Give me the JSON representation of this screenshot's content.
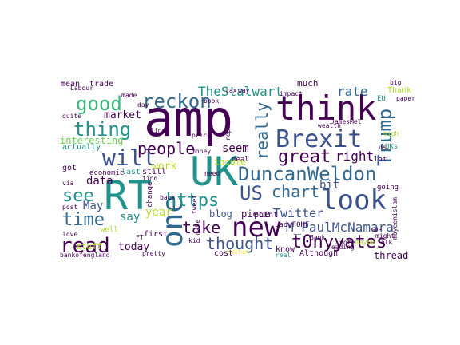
{
  "colors": {
    "dark_purple": "#440154",
    "indigo": "#3b528b",
    "slate_blue": "#31688e",
    "teal": "#21918c",
    "green": "#35b779",
    "light_green": "#6ece58",
    "yellow_green": "#b5de2b",
    "yellow": "#fde725"
  },
  "words": [
    {
      "text": "amp",
      "color": "dark_purple"
    },
    {
      "text": "think",
      "color": "dark_purple"
    },
    {
      "text": "UK",
      "color": "teal"
    },
    {
      "text": "RT",
      "color": "teal"
    },
    {
      "text": "Brexit",
      "color": "indigo"
    },
    {
      "text": "look",
      "color": "indigo"
    },
    {
      "text": "new",
      "color": "dark_purple"
    },
    {
      "text": "one",
      "color": "slate_blue"
    },
    {
      "text": "DuncanWeldon",
      "color": "slate_blue"
    },
    {
      "text": "good",
      "color": "green"
    },
    {
      "text": "will",
      "color": "indigo"
    },
    {
      "text": "read",
      "color": "dark_purple"
    },
    {
      "text": "Trump",
      "color": "slate_blue"
    },
    {
      "text": "thing",
      "color": "teal"
    },
    {
      "text": "reckon",
      "color": "slate_blue"
    },
    {
      "text": "people",
      "color": "dark_purple"
    },
    {
      "text": "great",
      "color": "dark_purple"
    },
    {
      "text": "really",
      "color": "slate_blue"
    },
    {
      "text": "see",
      "color": "teal"
    },
    {
      "text": "time",
      "color": "slate_blue"
    },
    {
      "text": "https",
      "color": "teal"
    },
    {
      "text": "US",
      "color": "indigo"
    },
    {
      "text": "chart",
      "color": "slate_blue"
    },
    {
      "text": "take",
      "color": "dark_purple"
    },
    {
      "text": "thought",
      "color": "indigo"
    },
    {
      "text": "t0nyyates",
      "color": "dark_purple"
    },
    {
      "text": "M_PaulMcNamara",
      "color": "indigo"
    },
    {
      "text": "TheStalwart",
      "color": "teal"
    },
    {
      "text": "rate",
      "color": "slate_blue"
    },
    {
      "text": "right",
      "color": "dark_purple"
    },
    {
      "text": "market",
      "color": "dark_purple"
    },
    {
      "text": "work",
      "color": "yellow_green"
    },
    {
      "text": "seem",
      "color": "dark_purple"
    },
    {
      "text": "Twitter",
      "color": "indigo"
    },
    {
      "text": "bit",
      "color": "indigo"
    },
    {
      "text": "data",
      "color": "dark_purple"
    },
    {
      "text": "year",
      "color": "yellow_green"
    },
    {
      "text": "May",
      "color": "indigo"
    },
    {
      "text": "say",
      "color": "teal"
    },
    {
      "text": "today",
      "color": "dark_purple"
    },
    {
      "text": "blog",
      "color": "indigo"
    },
    {
      "text": "piece",
      "color": "dark_purple"
    },
    {
      "text": "thread",
      "color": "dark_purple"
    },
    {
      "text": "know",
      "color": "dark_purple"
    },
    {
      "text": "income",
      "color": "yellow_green"
    },
    {
      "text": "interesting",
      "color": "light_green"
    },
    {
      "text": "stuff",
      "color": "yellow_green"
    },
    {
      "text": "Thank",
      "color": "yellow_green"
    },
    {
      "text": "trade",
      "color": "dark_purple"
    },
    {
      "text": "mean",
      "color": "dark_purple"
    },
    {
      "text": "much",
      "color": "dark_purple"
    },
    {
      "text": "quite",
      "color": "dark_purple"
    },
    {
      "text": "lot",
      "color": "dark_purple"
    },
    {
      "text": "got",
      "color": "dark_purple"
    },
    {
      "text": "last",
      "color": "teal"
    },
    {
      "text": "still",
      "color": "dark_purple"
    },
    {
      "text": "actually",
      "color": "teal"
    },
    {
      "text": "point",
      "color": "dark_purple"
    },
    {
      "text": "cost",
      "color": "dark_purple"
    },
    {
      "text": "Although",
      "color": "dark_purple"
    },
    {
      "text": "first",
      "color": "dark_purple"
    },
    {
      "text": "economic",
      "color": "dark_purple"
    },
    {
      "text": "going",
      "color": "dark_purple"
    },
    {
      "text": "deal",
      "color": "dark_purple"
    },
    {
      "text": "LadyFOHF",
      "color": "dark_purple"
    },
    {
      "text": "bankofengland",
      "color": "dark_purple"
    },
    {
      "text": "moyeenislam",
      "color": "dark_purple"
    },
    {
      "text": "JamesMel",
      "color": "dark_purple"
    },
    {
      "text": "wealth",
      "color": "dark_purple"
    },
    {
      "text": "impact",
      "color": "dark_purple"
    },
    {
      "text": "report",
      "color": "dark_purple"
    },
    {
      "text": "price",
      "color": "dark_purple"
    },
    {
      "text": "change",
      "color": "dark_purple"
    },
    {
      "text": "back",
      "color": "dark_purple"
    },
    {
      "text": "kid",
      "color": "dark_purple"
    },
    {
      "text": "Bank",
      "color": "dark_purple"
    },
    {
      "text": "vote",
      "color": "dark_purple"
    },
    {
      "text": "maybe",
      "color": "yellow_green"
    },
    {
      "text": "folk",
      "color": "dark_purple"
    },
    {
      "text": "reading",
      "color": "dark_purple"
    },
    {
      "text": "might",
      "color": "dark_purple"
    },
    {
      "text": "EU",
      "color": "teal"
    },
    {
      "text": "big",
      "color": "dark_purple"
    },
    {
      "text": "paper",
      "color": "dark_purple"
    },
    {
      "text": "book",
      "color": "dark_purple"
    },
    {
      "text": "way",
      "color": "dark_purple"
    },
    {
      "text": "tax",
      "color": "dark_purple"
    },
    {
      "text": "made",
      "color": "dark_purple"
    },
    {
      "text": "day",
      "color": "dark_purple"
    },
    {
      "text": "FT",
      "color": "dark_purple"
    },
    {
      "text": "rather",
      "color": "yellow"
    },
    {
      "text": "real",
      "color": "teal"
    },
    {
      "text": "pretty",
      "color": "dark_purple"
    },
    {
      "text": "love",
      "color": "dark_purple"
    },
    {
      "text": "post",
      "color": "dark_purple"
    },
    {
      "text": "via",
      "color": "dark_purple"
    },
    {
      "text": "Labour",
      "color": "dark_purple"
    },
    {
      "text": "make",
      "color": "dark_purple"
    },
    {
      "text": "money",
      "color": "dark_purple"
    },
    {
      "text": "find",
      "color": "dark_purple"
    },
    {
      "text": "line",
      "color": "dark_purple"
    },
    {
      "text": "tweet",
      "color": "dark_purple"
    },
    {
      "text": "need",
      "color": "dark_purple"
    },
    {
      "text": "UKs",
      "color": "teal"
    },
    {
      "text": "GDP",
      "color": "dark_purple"
    },
    {
      "text": "us",
      "color": "dark_purple"
    },
    {
      "text": "well",
      "color": "yellow_green"
    },
    {
      "text": "high",
      "color": "yellow_green"
    }
  ]
}
